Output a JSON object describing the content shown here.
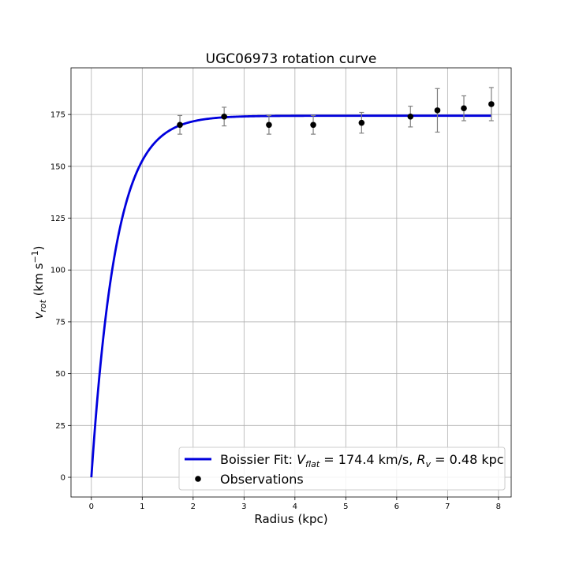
{
  "chart_data": {
    "type": "line",
    "title": "UGC06973 rotation curve",
    "xlabel": "Radius (kpc)",
    "ylabel_main": "v",
    "ylabel_sub": "rot",
    "ylabel_unit_open": " (km s",
    "ylabel_unit_sup": "−1",
    "ylabel_unit_close": ")",
    "xlim": [
      -0.4,
      8.25
    ],
    "ylim": [
      -9.5,
      197.5
    ],
    "xticks": [
      0,
      1,
      2,
      3,
      4,
      5,
      6,
      7,
      8
    ],
    "yticks": [
      0,
      25,
      50,
      75,
      100,
      125,
      150,
      175
    ],
    "grid": true,
    "legend_position": "lower-right",
    "fit": {
      "name_prefix": "Boissier Fit: ",
      "vflat_symbol": "V",
      "vflat_sub": "flat",
      "vflat_text": " = 174.4 km/s, ",
      "rv_symbol": "R",
      "rv_sub": "v",
      "rv_text": " = 0.48 kpc",
      "vflat": 174.4,
      "rv": 0.48,
      "x_range": [
        0,
        7.86
      ],
      "color": "#0000dd"
    },
    "observations": {
      "name": "Observations",
      "color": "#000000",
      "errorbar_color": "#808080",
      "points": [
        {
          "x": 1.74,
          "y": 170,
          "err": 4.5
        },
        {
          "x": 2.61,
          "y": 174,
          "err": 4.5
        },
        {
          "x": 3.49,
          "y": 170,
          "err": 4.5
        },
        {
          "x": 4.36,
          "y": 170,
          "err": 4.5
        },
        {
          "x": 5.31,
          "y": 171,
          "err": 5
        },
        {
          "x": 6.27,
          "y": 174,
          "err": 5
        },
        {
          "x": 6.8,
          "y": 177,
          "err": 10.5
        },
        {
          "x": 7.32,
          "y": 178,
          "err": 6
        },
        {
          "x": 7.86,
          "y": 180,
          "err": 8
        }
      ]
    }
  }
}
